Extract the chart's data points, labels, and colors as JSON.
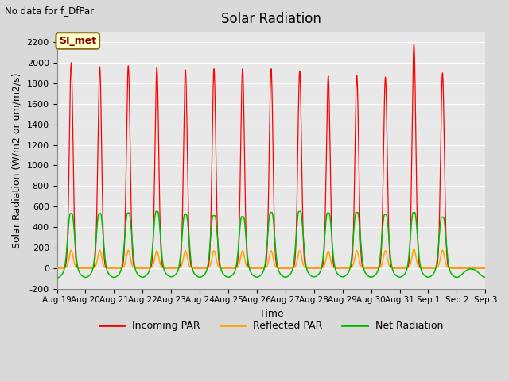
{
  "title": "Solar Radiation",
  "subtitle": "No data for f_DfPar",
  "xlabel": "Time",
  "ylabel": "Solar Radiation (W/m2 or um/m2/s)",
  "ylim": [
    -200,
    2300
  ],
  "yticks": [
    -200,
    0,
    200,
    400,
    600,
    800,
    1000,
    1200,
    1400,
    1600,
    1800,
    2000,
    2200
  ],
  "xtick_labels": [
    "Aug 19",
    "Aug 20",
    "Aug 21",
    "Aug 22",
    "Aug 23",
    "Aug 24",
    "Aug 25",
    "Aug 26",
    "Aug 27",
    "Aug 28",
    "Aug 29",
    "Aug 30",
    "Aug 31",
    "Sep 1",
    "Sep 2",
    "Sep 3"
  ],
  "legend_label_box": "SI_met",
  "legend_entries": [
    "Incoming PAR",
    "Reflected PAR",
    "Net Radiation"
  ],
  "legend_colors": [
    "#ff0000",
    "#ffa500",
    "#00bb00"
  ],
  "bg_color": "#e8e8e8",
  "line_colors": {
    "incoming": "#ff0000",
    "reflected": "#ffa500",
    "net": "#00bb00"
  },
  "peak_incoming": [
    2000,
    1960,
    1970,
    1950,
    1930,
    1940,
    1940,
    1940,
    1920,
    1870,
    1880,
    1860,
    2180,
    1900,
    0
  ],
  "peak_reflected": [
    175,
    175,
    175,
    170,
    170,
    170,
    170,
    170,
    170,
    165,
    170,
    170,
    185,
    175,
    0
  ],
  "peak_net": [
    540,
    540,
    545,
    560,
    530,
    520,
    510,
    550,
    560,
    545,
    550,
    530,
    550,
    505,
    0
  ],
  "trough_net": [
    -95,
    -90,
    -90,
    -88,
    -85,
    -88,
    -88,
    -88,
    -88,
    -85,
    -85,
    -88,
    -88,
    -88,
    -90
  ]
}
